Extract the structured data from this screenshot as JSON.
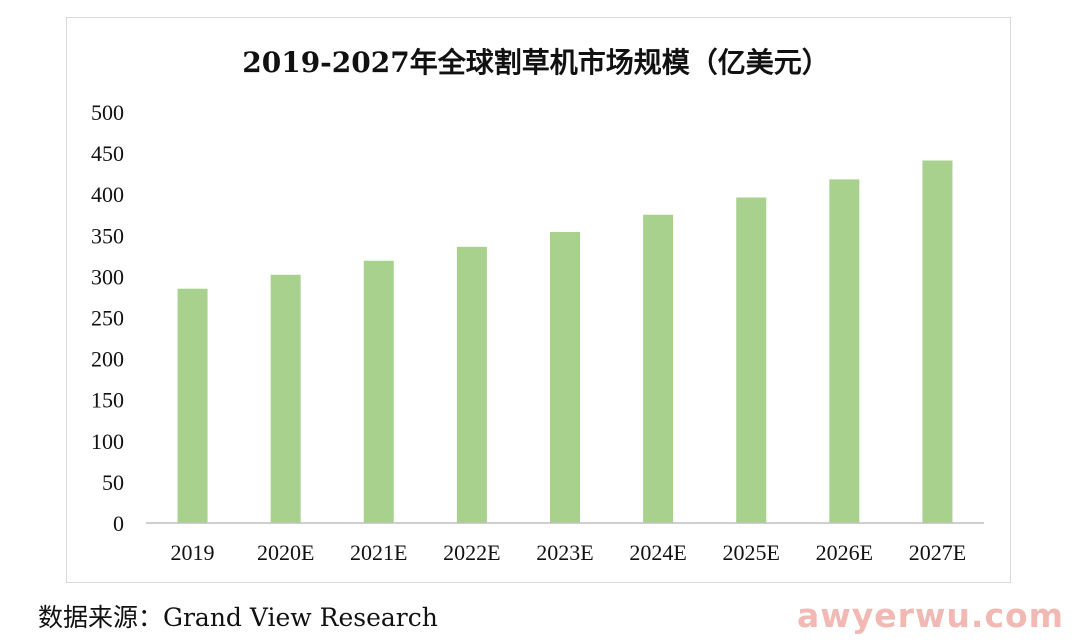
{
  "chart_data": {
    "type": "bar",
    "title": "2019-2027年全球割草机市场规模（亿美元）",
    "categories": [
      "2019",
      "2020E",
      "2021E",
      "2022E",
      "2023E",
      "2024E",
      "2025E",
      "2026E",
      "2027E"
    ],
    "values": [
      285,
      302,
      319,
      336,
      354,
      375,
      396,
      418,
      441
    ],
    "ylim": [
      0,
      500
    ],
    "yticks": [
      "0",
      "50",
      "100",
      "150",
      "200",
      "250",
      "300",
      "350",
      "400",
      "450",
      "500"
    ],
    "xlabel": "",
    "ylabel": "",
    "grid": false,
    "bar_color": "#a9d18e",
    "axis_color": "#bfbfbf"
  },
  "footer": {
    "source": "数据来源：Grand View Research"
  },
  "watermark": {
    "text": "awyerwu.com"
  }
}
